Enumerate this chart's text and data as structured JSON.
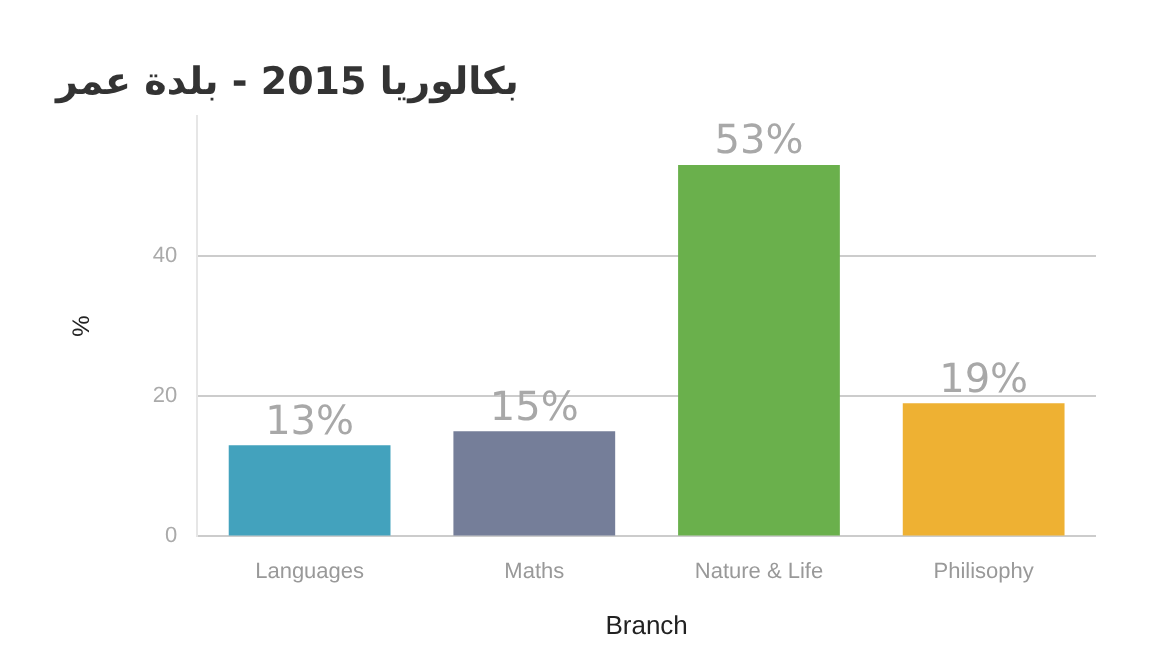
{
  "chart_data": {
    "type": "bar",
    "title": "بكالوريا 2015 - بلدة عمر",
    "xlabel": "Branch",
    "ylabel": "%",
    "categories": [
      "Languages",
      "Maths",
      "Nature & Life",
      "Philisophy"
    ],
    "values": [
      13,
      15,
      53,
      19
    ],
    "colors": [
      "#43a2bd",
      "#757e99",
      "#6ab04c",
      "#eeb133"
    ],
    "value_labels": [
      "13%",
      "15%",
      "53%",
      "19%"
    ],
    "ylim": [
      0,
      60
    ],
    "yticks": [
      0,
      20,
      40
    ],
    "grid": "y",
    "legend": false
  }
}
